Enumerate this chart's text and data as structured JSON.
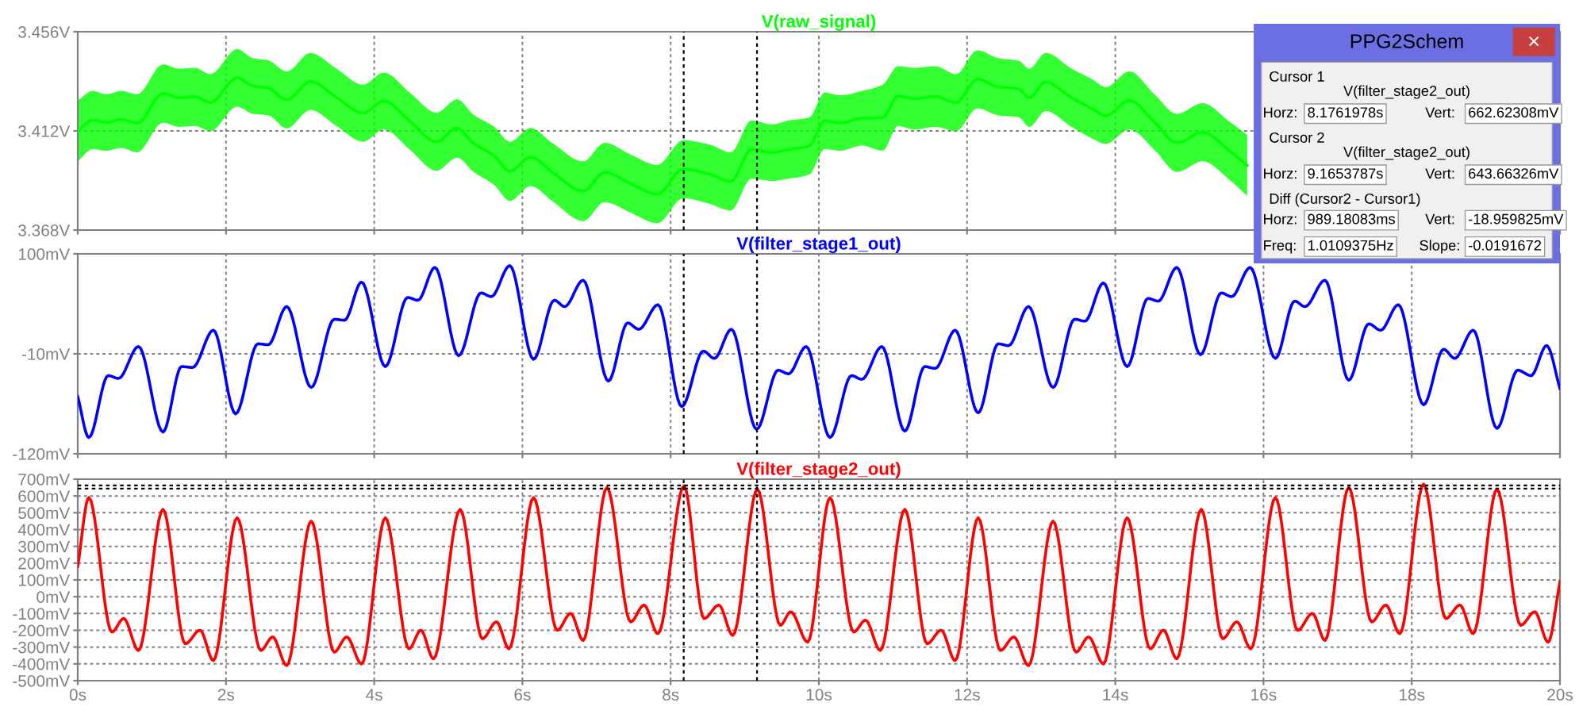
{
  "chart_data": [
    {
      "type": "line",
      "series": [
        {
          "name": "V(raw_signal)",
          "color": "#00ff00",
          "x": [
            0.0,
            0.2,
            0.38,
            0.59,
            0.8,
            1.15,
            1.37,
            1.58,
            1.79,
            2.15,
            2.36,
            2.57,
            2.82,
            3.14,
            3.49,
            3.85,
            4.13,
            4.48,
            4.84,
            5.12,
            5.34,
            5.62,
            5.83,
            6.11,
            6.4,
            6.82,
            7.11,
            7.46,
            7.82,
            8.17,
            8.52,
            8.81,
            9.09,
            9.37,
            9.59,
            9.87,
            10.08,
            10.29,
            10.58,
            10.86,
            11.07,
            11.29,
            11.57,
            11.85,
            12.14,
            12.42,
            12.7,
            12.84,
            13.06,
            13.41,
            13.69,
            13.87,
            14.19,
            14.54,
            14.83,
            15.18,
            15.54,
            15.78
          ],
          "values": [
            3.412,
            3.4168,
            3.4158,
            3.4171,
            3.4154,
            3.4286,
            3.4267,
            3.4271,
            3.4246,
            3.4355,
            3.432,
            3.4311,
            3.4258,
            3.434,
            3.4269,
            3.4199,
            3.4253,
            3.4164,
            3.4072,
            3.4131,
            3.4065,
            3.4009,
            3.3941,
            3.4004,
            3.3938,
            3.3853,
            3.3936,
            3.3886,
            3.384,
            3.395,
            3.3929,
            3.3896,
            3.4037,
            3.4024,
            3.4037,
            3.4053,
            3.4165,
            3.4155,
            3.4176,
            3.4179,
            3.4275,
            3.4263,
            3.4273,
            3.4246,
            3.4349,
            3.4316,
            3.4306,
            3.4267,
            3.4337,
            3.4267,
            3.4218,
            3.4188,
            3.4255,
            3.4155,
            3.4067,
            3.4114,
            3.4032,
            3.3967
          ],
          "lower": [
            3.3985,
            3.4039,
            3.4032,
            3.4044,
            3.4025,
            3.4156,
            3.4138,
            3.4142,
            3.4119,
            3.4227,
            3.4196,
            3.4189,
            3.4131,
            3.4213,
            3.4142,
            3.4072,
            3.4126,
            3.4037,
            3.3943,
            3.4001,
            3.3938,
            3.388,
            3.3809,
            3.3875,
            3.3809,
            3.372,
            3.3804,
            3.3757,
            3.371,
            3.3821,
            3.3797,
            3.3767,
            3.3908,
            3.3898,
            3.3908,
            3.3926,
            3.4039,
            3.4032,
            3.4055,
            3.4032,
            3.4142,
            3.4126,
            3.4138,
            3.4119,
            3.422,
            3.4189,
            3.418,
            3.4138,
            3.4208,
            3.4138,
            3.4086,
            3.4062,
            3.4126,
            3.4032,
            3.3938,
            3.3985,
            3.3903,
            3.3832
          ],
          "upper": [
            3.4255,
            3.4297,
            3.4283,
            3.4297,
            3.4283,
            3.4415,
            3.4396,
            3.44,
            3.4372,
            3.4483,
            3.4443,
            3.4433,
            3.4384,
            3.4466,
            3.4396,
            3.4325,
            3.4379,
            3.429,
            3.4201,
            3.426,
            3.4192,
            3.4138,
            3.4072,
            3.4133,
            3.4067,
            3.3985,
            3.4067,
            3.4015,
            3.3969,
            3.4079,
            3.406,
            3.4025,
            3.4166,
            3.4149,
            3.4166,
            3.418,
            3.429,
            3.4278,
            3.4297,
            3.4325,
            3.4407,
            3.44,
            3.4407,
            3.4372,
            3.4478,
            3.4443,
            3.4431,
            3.4396,
            3.4466,
            3.4396,
            3.4349,
            3.4314,
            3.4384,
            3.4278,
            3.4196,
            3.4243,
            3.4161,
            3.4102
          ]
        }
      ],
      "xlim": [
        0,
        20
      ],
      "xticks": [
        0,
        2,
        4,
        6,
        8,
        10,
        12,
        14,
        16,
        18,
        20
      ],
      "ylim": [
        3.368,
        3.456
      ],
      "yticks": [
        {
          "value": 3.368,
          "label": "3.368V"
        },
        {
          "value": 3.412,
          "label": "3.412V"
        },
        {
          "value": 3.456,
          "label": "3.456V"
        }
      ],
      "grid": true,
      "tick_labels": "y",
      "line_style": "solid",
      "ref_lines": [
        {
          "axis": "x",
          "value": 8.1761978,
          "color": "#000000",
          "line_style": "dotted"
        },
        {
          "axis": "x",
          "value": 9.1653787,
          "color": "#000000",
          "line_style": "dotted"
        }
      ]
    },
    {
      "type": "line",
      "series": [
        {
          "name": "V(filter_stage1_out)",
          "color": "#0000ff",
          "x": [
            0.0,
            0.15,
            0.41,
            0.55,
            0.82,
            1.15,
            1.4,
            1.55,
            1.83,
            2.13,
            2.43,
            2.57,
            2.82,
            3.15,
            3.46,
            3.6,
            3.83,
            4.15,
            4.45,
            4.59,
            4.82,
            5.14,
            5.44,
            5.58,
            5.83,
            6.15,
            6.43,
            6.57,
            6.82,
            7.16,
            7.42,
            7.57,
            7.83,
            8.15,
            8.44,
            8.59,
            8.82,
            9.16,
            9.45,
            9.59,
            9.83,
            10.15,
            10.44,
            10.58,
            10.85,
            11.16,
            11.43,
            11.57,
            11.84,
            12.15,
            12.42,
            12.56,
            12.83,
            13.16,
            13.45,
            13.59,
            13.84,
            14.16,
            14.44,
            14.58,
            14.83,
            15.15,
            15.43,
            15.57,
            15.82,
            16.16,
            16.42,
            16.56,
            16.83,
            17.15,
            17.42,
            17.58,
            17.82,
            18.16,
            18.43,
            18.58,
            18.83,
            19.15,
            19.43,
            19.61,
            19.82,
            20.0
          ],
          "values": [
            -57,
            -102,
            -34,
            -37,
            -2,
            -96,
            -24,
            -25,
            16,
            -76,
            1,
            0,
            42,
            -47,
            28,
            27,
            69,
            -24,
            52,
            49,
            85,
            -12,
            57,
            53,
            87,
            -16,
            49,
            42,
            71,
            -40,
            24,
            17,
            44,
            -68,
            -7,
            -15,
            17,
            -93,
            -28,
            -32,
            -2,
            -102,
            -34,
            -38,
            -2,
            -95,
            -24,
            -26,
            16,
            -75,
            1,
            -1,
            42,
            -47,
            28,
            26,
            68,
            -24,
            51,
            48,
            85,
            -11,
            57,
            53,
            85,
            -15,
            48,
            42,
            71,
            -39,
            23,
            16,
            44,
            -66,
            -5,
            -15,
            16,
            -92,
            -28,
            -34,
            -1,
            -48
          ]
        }
      ],
      "xlim": [
        0,
        20
      ],
      "xticks": [
        0,
        2,
        4,
        6,
        8,
        10,
        12,
        14,
        16,
        18,
        20
      ],
      "ylim": [
        -120,
        100
      ],
      "yticks": [
        {
          "value": -120,
          "label": "-120mV"
        },
        {
          "value": -10,
          "label": "-10mV"
        },
        {
          "value": 100,
          "label": "100mV"
        }
      ],
      "grid": true,
      "tick_labels": "y",
      "line_style": "solid",
      "ref_lines": [
        {
          "axis": "x",
          "value": 8.1761978,
          "color": "#000000",
          "line_style": "dotted"
        },
        {
          "axis": "x",
          "value": 9.1653787,
          "color": "#000000",
          "line_style": "dotted"
        }
      ]
    },
    {
      "type": "line",
      "series": [
        {
          "name": "V(filter_stage2_out)",
          "color": "#ff0000",
          "x": [
            0.0,
            0.15,
            0.46,
            0.62,
            0.82,
            1.15,
            1.45,
            1.65,
            1.83,
            2.15,
            2.47,
            2.63,
            2.82,
            3.15,
            3.46,
            3.63,
            3.83,
            4.15,
            4.47,
            4.63,
            4.8,
            5.16,
            5.46,
            5.65,
            5.82,
            6.15,
            6.47,
            6.65,
            6.82,
            7.14,
            7.46,
            7.64,
            7.83,
            8.18,
            8.45,
            8.65,
            8.84,
            9.17,
            9.48,
            9.62,
            9.85,
            10.15,
            10.47,
            10.63,
            10.83,
            11.16,
            11.46,
            11.65,
            11.84,
            12.15,
            12.45,
            12.63,
            12.83,
            13.16,
            13.47,
            13.64,
            13.84,
            14.16,
            14.47,
            14.65,
            14.83,
            15.16,
            15.45,
            15.64,
            15.83,
            16.16,
            16.46,
            16.66,
            16.83,
            17.15,
            17.46,
            17.65,
            17.84,
            18.16,
            18.46,
            18.65,
            18.83,
            19.15,
            19.47,
            19.66,
            19.84,
            20.0
          ],
          "values": [
            180,
            590,
            -210,
            -130,
            -320,
            520,
            -280,
            -200,
            -380,
            470,
            -320,
            -240,
            -410,
            450,
            -330,
            -240,
            -400,
            470,
            -310,
            -200,
            -370,
            520,
            -250,
            -150,
            -310,
            590,
            -200,
            -100,
            -260,
            650,
            -150,
            -50,
            -220,
            660,
            -130,
            -50,
            -230,
            640,
            -170,
            -90,
            -270,
            590,
            -210,
            -140,
            -320,
            520,
            -280,
            -200,
            -380,
            470,
            -320,
            -240,
            -410,
            450,
            -330,
            -240,
            -400,
            470,
            -310,
            -200,
            -370,
            520,
            -250,
            -150,
            -310,
            590,
            -200,
            -100,
            -260,
            650,
            -150,
            -50,
            -220,
            670,
            -130,
            -50,
            -220,
            640,
            -170,
            -90,
            -270,
            90
          ]
        }
      ],
      "xlim": [
        0,
        20
      ],
      "xticks": [
        {
          "value": 0,
          "label": "0s"
        },
        {
          "value": 2,
          "label": "2s"
        },
        {
          "value": 4,
          "label": "4s"
        },
        {
          "value": 6,
          "label": "6s"
        },
        {
          "value": 8,
          "label": "8s"
        },
        {
          "value": 10,
          "label": "10s"
        },
        {
          "value": 12,
          "label": "12s"
        },
        {
          "value": 14,
          "label": "14s"
        },
        {
          "value": 16,
          "label": "16s"
        },
        {
          "value": 18,
          "label": "18s"
        },
        {
          "value": 20,
          "label": "20s"
        }
      ],
      "ylim": [
        -500,
        700
      ],
      "yticks": [
        {
          "value": -500,
          "label": "-500mV"
        },
        {
          "value": -400,
          "label": "-400mV"
        },
        {
          "value": -300,
          "label": "-300mV"
        },
        {
          "value": -200,
          "label": "-200mV"
        },
        {
          "value": -100,
          "label": "-100mV"
        },
        {
          "value": 0,
          "label": "0mV"
        },
        {
          "value": 100,
          "label": "100mV"
        },
        {
          "value": 200,
          "label": "200mV"
        },
        {
          "value": 300,
          "label": "300mV"
        },
        {
          "value": 400,
          "label": "400mV"
        },
        {
          "value": 500,
          "label": "500mV"
        },
        {
          "value": 600,
          "label": "600mV"
        },
        {
          "value": 700,
          "label": "700mV"
        }
      ],
      "grid": true,
      "line_style": "solid",
      "ref_lines": [
        {
          "axis": "x",
          "value": 8.1761978,
          "color": "#000000",
          "line_style": "dotted"
        },
        {
          "axis": "x",
          "value": 9.1653787,
          "color": "#000000",
          "line_style": "dotted"
        },
        {
          "axis": "y",
          "value": 662.62308,
          "color": "#000000",
          "line_style": "dotted"
        },
        {
          "axis": "y",
          "value": 643.66326,
          "color": "#000000",
          "line_style": "dotted"
        }
      ]
    },
    {
      "type": "other",
      "title": "PPG2Schem",
      "annotations": [
        "Cursor 1",
        "V(filter_stage2_out)",
        "Horz:",
        "8.1761978s",
        "Vert:",
        "662.62308mV",
        "Cursor 2",
        "V(filter_stage2_out)",
        "Horz:",
        "9.1653787s",
        "Vert:",
        "643.66326mV",
        "Diff (Cursor2 - Cursor1)",
        "Horz:",
        "989.18083ms",
        "Vert:",
        "-18.959825mV",
        "Freq:",
        "1.0109375Hz",
        "Slope:",
        "-0.0191672",
        "×"
      ]
    }
  ]
}
